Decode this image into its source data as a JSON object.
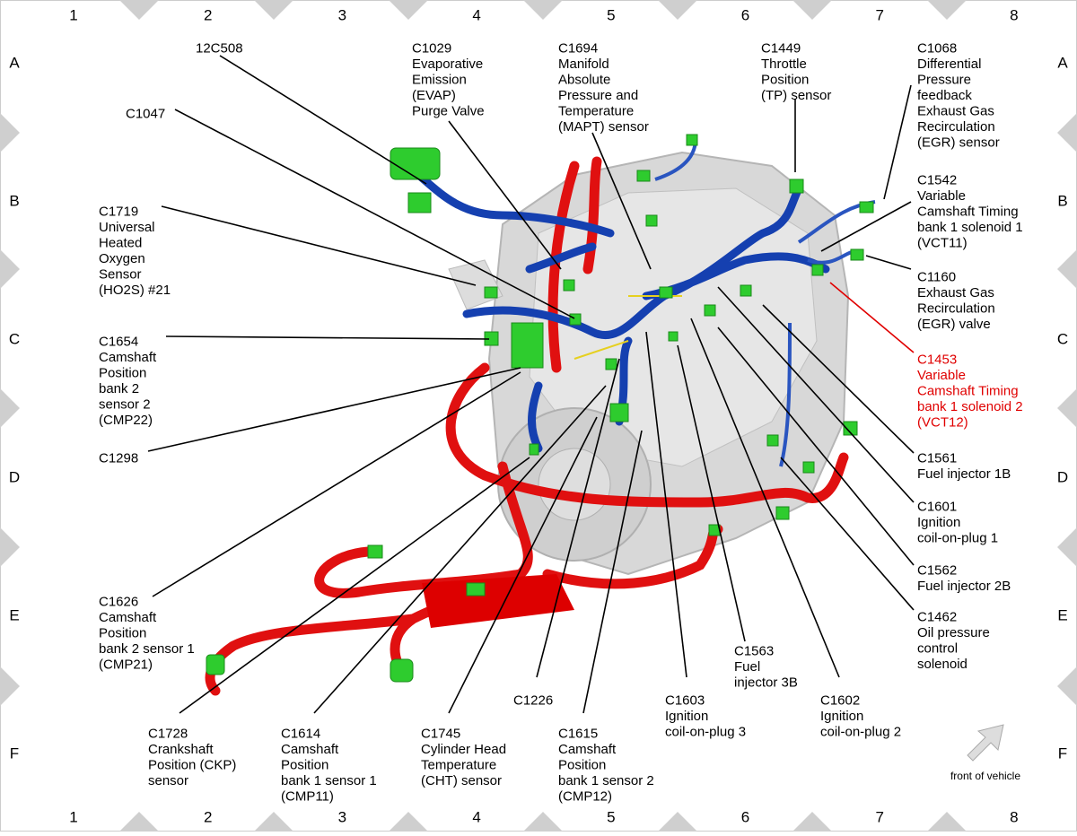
{
  "grid": {
    "columns": [
      "1",
      "2",
      "3",
      "4",
      "5",
      "6",
      "7",
      "8"
    ],
    "rows": [
      "A",
      "B",
      "C",
      "D",
      "E",
      "F"
    ]
  },
  "callouts": [
    {
      "lines": [
        "12C508"
      ]
    },
    {
      "lines": [
        "C1029",
        "Evaporative",
        "Emission",
        "(EVAP)",
        "Purge Valve"
      ]
    },
    {
      "lines": [
        "C1694",
        "Manifold",
        "Absolute",
        "Pressure and",
        "Temperature",
        "(MAPT) sensor"
      ]
    },
    {
      "lines": [
        "C1449",
        "Throttle",
        "Position",
        "(TP) sensor"
      ]
    },
    {
      "lines": [
        "C1068",
        "Differential",
        "Pressure",
        "feedback",
        "Exhaust Gas",
        "Recirculation",
        "(EGR) sensor"
      ]
    },
    {
      "lines": [
        "C1047"
      ]
    },
    {
      "lines": [
        "C1719",
        "Universal",
        "Heated",
        "Oxygen",
        "Sensor",
        "(HO2S) #21"
      ]
    },
    {
      "lines": [
        "C1542",
        "Variable",
        "Camshaft Timing",
        "bank 1 solenoid 1",
        "(VCT11)"
      ]
    },
    {
      "lines": [
        "C1160",
        "Exhaust Gas",
        "Recirculation",
        "(EGR) valve"
      ]
    },
    {
      "lines": [
        "C1453",
        "Variable",
        "Camshaft Timing",
        "bank 1 solenoid 2",
        "(VCT12)"
      ],
      "color": "#e00000"
    },
    {
      "lines": [
        "C1654",
        "Camshaft",
        "Position",
        "bank 2",
        "sensor 2",
        "(CMP22)"
      ]
    },
    {
      "lines": [
        "C1298"
      ]
    },
    {
      "lines": [
        "C1561",
        "Fuel injector 1B"
      ]
    },
    {
      "lines": [
        "C1601",
        "Ignition",
        "coil-on-plug 1"
      ]
    },
    {
      "lines": [
        "C1562",
        "Fuel injector 2B"
      ]
    },
    {
      "lines": [
        "C1462",
        "Oil pressure",
        "control",
        "solenoid"
      ]
    },
    {
      "lines": [
        "C1626",
        "Camshaft",
        "Position",
        "bank 2 sensor 1",
        "(CMP21)"
      ]
    },
    {
      "lines": [
        "C1563",
        "Fuel",
        "injector 3B"
      ]
    },
    {
      "lines": [
        "C1226"
      ]
    },
    {
      "lines": [
        "C1603",
        "Ignition",
        "coil-on-plug 3"
      ]
    },
    {
      "lines": [
        "C1602",
        "Ignition",
        "coil-on-plug 2"
      ]
    },
    {
      "lines": [
        "C1728",
        "Crankshaft",
        "Position (CKP)",
        "sensor"
      ]
    },
    {
      "lines": [
        "C1614",
        "Camshaft",
        "Position",
        "bank 1 sensor 1",
        "(CMP11)"
      ]
    },
    {
      "lines": [
        "C1745",
        "Cylinder Head",
        "Temperature",
        "(CHT) sensor"
      ]
    },
    {
      "lines": [
        "C1615",
        "Camshaft",
        "Position",
        "bank 1 sensor 2",
        "(CMP12)"
      ]
    }
  ],
  "note": "front of vehicle"
}
